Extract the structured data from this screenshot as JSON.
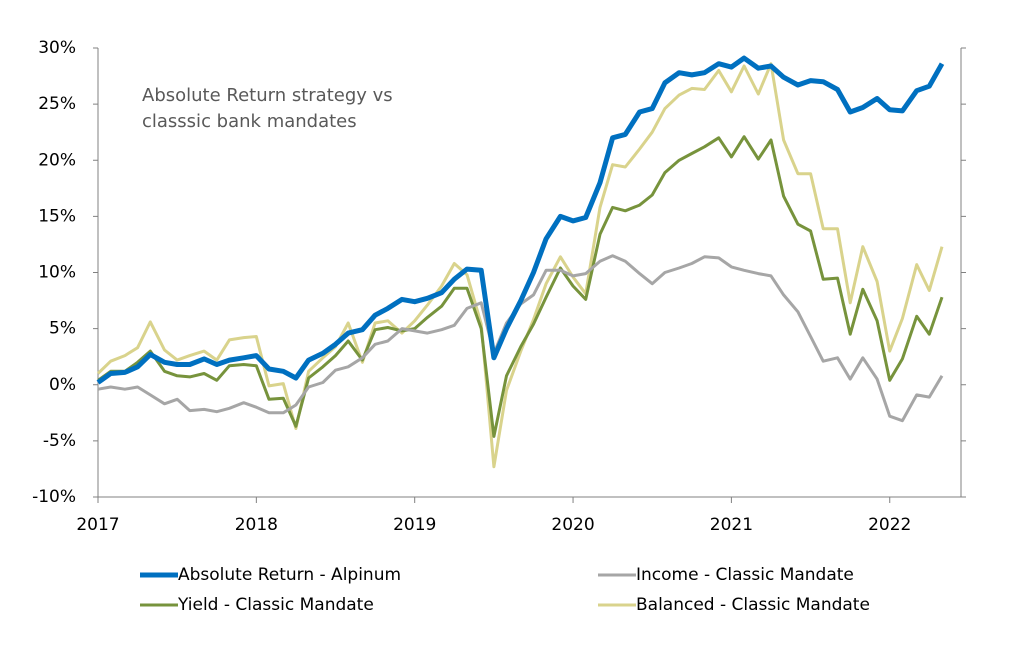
{
  "chart_data": {
    "type": "line",
    "title": [
      "Absolute Return strategy vs",
      "classsic bank mandates"
    ],
    "x": [
      2017,
      2017.08,
      2017.17,
      2017.25,
      2017.33,
      2017.42,
      2017.5,
      2017.58,
      2017.67,
      2017.75,
      2017.83,
      2017.92,
      2018,
      2018.08,
      2018.17,
      2018.25,
      2018.33,
      2018.42,
      2018.5,
      2018.58,
      2018.67,
      2018.75,
      2018.83,
      2018.92,
      2019,
      2019.08,
      2019.17,
      2019.25,
      2019.33,
      2019.42,
      2019.5,
      2019.58,
      2019.67,
      2019.75,
      2019.83,
      2019.92,
      2020,
      2020.08,
      2020.17,
      2020.25,
      2020.33,
      2020.42,
      2020.5,
      2020.58,
      2020.67,
      2020.75,
      2020.83,
      2020.92,
      2021,
      2021.08,
      2021.17,
      2021.25,
      2021.33,
      2021.42,
      2021.5,
      2021.58,
      2021.67,
      2021.75,
      2021.83,
      2021.92,
      2022,
      2022.08,
      2022.17,
      2022.25,
      2022.33
    ],
    "series": [
      {
        "name": "Absolute Return - Alpinum",
        "color": "#0070c0",
        "width": 5,
        "values": [
          0.2,
          1.0,
          1.1,
          1.6,
          2.7,
          2.0,
          1.8,
          1.8,
          2.3,
          1.8,
          2.2,
          2.4,
          2.6,
          1.4,
          1.2,
          0.6,
          2.2,
          2.8,
          3.6,
          4.6,
          4.9,
          6.2,
          6.8,
          7.6,
          7.4,
          7.7,
          8.2,
          9.4,
          10.3,
          10.2,
          2.4,
          5.0,
          7.5,
          10.0,
          13.0,
          15.0,
          14.6,
          14.9,
          18.0,
          22.0,
          22.3,
          24.3,
          24.6,
          26.9,
          27.8,
          27.6,
          27.8,
          28.6,
          28.3,
          29.1,
          28.2,
          28.4,
          27.4,
          26.7,
          27.1,
          27.0,
          26.3,
          24.3,
          24.7,
          25.5,
          24.5,
          24.4,
          26.2,
          26.6,
          28.6
        ]
      },
      {
        "name": "Income - Classic Mandate",
        "color": "#a6a6a6",
        "width": 3,
        "values": [
          -0.4,
          -0.2,
          -0.4,
          -0.2,
          -0.9,
          -1.7,
          -1.3,
          -2.3,
          -2.2,
          -2.4,
          -2.1,
          -1.6,
          -2.0,
          -2.5,
          -2.5,
          -1.8,
          -0.2,
          0.2,
          1.3,
          1.6,
          2.4,
          3.6,
          3.9,
          5.0,
          4.8,
          4.6,
          4.9,
          5.3,
          6.8,
          7.3,
          2.8,
          5.5,
          7.2,
          8.0,
          10.2,
          10.2,
          9.7,
          9.9,
          11.0,
          11.5,
          11.0,
          9.9,
          9.0,
          10.0,
          10.4,
          10.8,
          11.4,
          11.3,
          10.5,
          10.2,
          9.9,
          9.7,
          8.0,
          6.5,
          4.3,
          2.1,
          2.4,
          0.5,
          2.4,
          0.5,
          -2.8,
          -3.2,
          -0.9,
          -1.1,
          0.8
        ]
      },
      {
        "name": "Yield - Classic Mandate",
        "color": "#77933c",
        "width": 3,
        "values": [
          0.4,
          1.2,
          1.2,
          2.0,
          3.0,
          1.2,
          0.8,
          0.7,
          1.0,
          0.4,
          1.7,
          1.8,
          1.7,
          -1.3,
          -1.2,
          -3.7,
          0.6,
          1.6,
          2.6,
          3.9,
          2.2,
          4.9,
          5.1,
          4.8,
          5.0,
          6.0,
          7.0,
          8.6,
          8.6,
          5.0,
          -4.6,
          0.8,
          3.4,
          5.4,
          7.8,
          10.4,
          8.8,
          7.6,
          13.4,
          15.8,
          15.5,
          16.0,
          16.9,
          18.9,
          20.0,
          20.6,
          21.2,
          22.0,
          20.3,
          22.1,
          20.1,
          21.8,
          16.8,
          14.3,
          13.7,
          9.4,
          9.5,
          4.5,
          8.5,
          5.7,
          0.4,
          2.3,
          6.1,
          4.5,
          7.8
        ]
      },
      {
        "name": "Balanced - Classic Mandate",
        "color": "#d9d38c",
        "width": 3,
        "values": [
          1.0,
          2.1,
          2.6,
          3.3,
          5.6,
          3.1,
          2.2,
          2.6,
          3.0,
          2.2,
          4.0,
          4.2,
          4.3,
          -0.1,
          0.1,
          -3.9,
          1.2,
          2.4,
          3.4,
          5.5,
          2.0,
          5.5,
          5.7,
          4.6,
          5.7,
          7.1,
          8.8,
          10.8,
          9.8,
          5.4,
          -7.3,
          -0.5,
          3.0,
          5.8,
          9.0,
          11.4,
          9.6,
          8.1,
          15.8,
          19.6,
          19.4,
          21.0,
          22.5,
          24.6,
          25.8,
          26.4,
          26.3,
          28.0,
          26.1,
          28.4,
          25.9,
          28.6,
          21.8,
          18.8,
          18.8,
          13.9,
          13.9,
          7.3,
          12.3,
          9.2,
          3.0,
          5.9,
          10.7,
          8.4,
          12.3
        ]
      }
    ],
    "xlim": [
      2017,
      2022.45
    ],
    "xticks": [
      2017,
      2018,
      2019,
      2020,
      2021,
      2022
    ],
    "ylim": [
      -10,
      30
    ],
    "yticks": [
      {
        "value": -10,
        "label": "-10%"
      },
      {
        "value": -5,
        "label": "-5%"
      },
      {
        "value": 0,
        "label": "0%"
      },
      {
        "value": 5,
        "label": "5%"
      },
      {
        "value": 10,
        "label": "10%"
      },
      {
        "value": 15,
        "label": "15%"
      },
      {
        "value": 20,
        "label": "20%"
      },
      {
        "value": 25,
        "label": "25%"
      },
      {
        "value": 30,
        "label": "30%"
      }
    ],
    "grid": false,
    "legend": "bottom"
  }
}
